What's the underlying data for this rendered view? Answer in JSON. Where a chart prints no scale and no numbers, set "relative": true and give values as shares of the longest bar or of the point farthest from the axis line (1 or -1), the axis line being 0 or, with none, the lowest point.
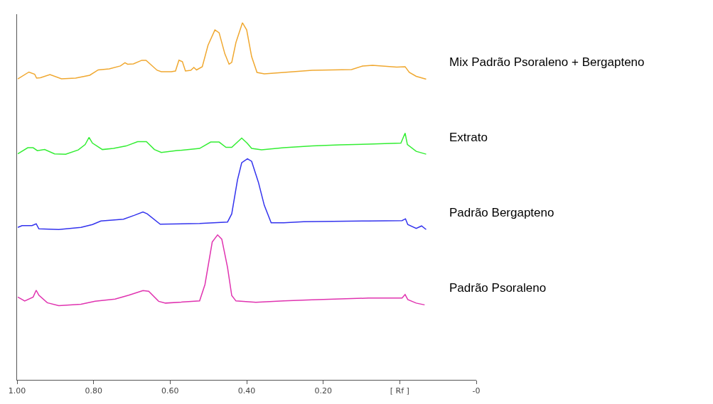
{
  "chart_data": {
    "type": "line",
    "relative": true,
    "legend": false,
    "marker": "none",
    "line_style": "solid",
    "xlim": [
      1.0,
      -0.2
    ],
    "xticks": [
      {
        "value": 1.0,
        "label": "1.00"
      },
      {
        "value": 0.8,
        "label": "0.80"
      },
      {
        "value": 0.6,
        "label": "0.60"
      },
      {
        "value": 0.4,
        "label": "0.40"
      },
      {
        "value": 0.2,
        "label": "0.20"
      },
      {
        "value": 0,
        "label": "[ Rf ]"
      },
      {
        "value": -0.2,
        "label": "-0"
      }
    ],
    "series": [
      {
        "name": "Mix Padrão Psoraleno + Bergapteno",
        "color": "#f0a830",
        "x": [
          0.998,
          0.969,
          0.954,
          0.949,
          0.939,
          0.914,
          0.884,
          0.847,
          0.81,
          0.788,
          0.759,
          0.73,
          0.718,
          0.711,
          0.696,
          0.674,
          0.663,
          0.634,
          0.623,
          0.597,
          0.586,
          0.577,
          0.568,
          0.56,
          0.546,
          0.538,
          0.531,
          0.516,
          0.501,
          0.483,
          0.472,
          0.457,
          0.446,
          0.439,
          0.428,
          0.411,
          0.4,
          0.387,
          0.373,
          0.354,
          0.303,
          0.229,
          0.126,
          0.097,
          0.071,
          0.008,
          -0.014,
          -0.025,
          -0.043,
          -0.069
        ],
        "values": [
          0.843,
          0.862,
          0.856,
          0.845,
          0.846,
          0.855,
          0.843,
          0.845,
          0.853,
          0.868,
          0.871,
          0.879,
          0.888,
          0.884,
          0.885,
          0.895,
          0.895,
          0.867,
          0.863,
          0.863,
          0.865,
          0.895,
          0.891,
          0.865,
          0.867,
          0.875,
          0.868,
          0.877,
          0.937,
          0.98,
          0.972,
          0.913,
          0.884,
          0.889,
          0.945,
          1.0,
          0.98,
          0.905,
          0.861,
          0.857,
          0.861,
          0.867,
          0.869,
          0.879,
          0.881,
          0.876,
          0.877,
          0.861,
          0.85,
          0.842
        ]
      },
      {
        "name": "Extrato",
        "color": "#33ee33",
        "x": [
          0.998,
          0.972,
          0.958,
          0.947,
          0.928,
          0.902,
          0.873,
          0.84,
          0.822,
          0.812,
          0.803,
          0.777,
          0.748,
          0.715,
          0.685,
          0.662,
          0.641,
          0.623,
          0.582,
          0.523,
          0.494,
          0.472,
          0.454,
          0.439,
          0.413,
          0.399,
          0.387,
          0.361,
          0.303,
          0.229,
          0.156,
          0.082,
          -0.003,
          -0.014,
          -0.02,
          -0.043,
          -0.069
        ],
        "values": [
          0.633,
          0.65,
          0.65,
          0.642,
          0.645,
          0.633,
          0.632,
          0.644,
          0.659,
          0.679,
          0.663,
          0.645,
          0.648,
          0.655,
          0.667,
          0.667,
          0.645,
          0.637,
          0.642,
          0.648,
          0.666,
          0.666,
          0.651,
          0.651,
          0.677,
          0.663,
          0.648,
          0.644,
          0.65,
          0.655,
          0.658,
          0.66,
          0.663,
          0.691,
          0.659,
          0.64,
          0.632
        ]
      },
      {
        "name": "Padrão Bergapteno",
        "color": "#3333ee",
        "x": [
          0.998,
          0.987,
          0.961,
          0.95,
          0.943,
          0.891,
          0.833,
          0.803,
          0.781,
          0.722,
          0.693,
          0.671,
          0.66,
          0.626,
          0.523,
          0.45,
          0.439,
          0.424,
          0.413,
          0.398,
          0.387,
          0.369,
          0.354,
          0.336,
          0.303,
          0.251,
          0.082,
          -0.006,
          -0.015,
          -0.021,
          -0.043,
          -0.057,
          -0.069
        ],
        "values": [
          0.427,
          0.432,
          0.432,
          0.437,
          0.423,
          0.421,
          0.427,
          0.435,
          0.445,
          0.45,
          0.461,
          0.47,
          0.465,
          0.436,
          0.438,
          0.442,
          0.465,
          0.56,
          0.608,
          0.619,
          0.612,
          0.552,
          0.489,
          0.44,
          0.44,
          0.443,
          0.445,
          0.446,
          0.451,
          0.435,
          0.424,
          0.431,
          0.421
        ]
      },
      {
        "name": "Padrão Psoraleno",
        "color": "#e033b0",
        "x": [
          0.998,
          0.98,
          0.958,
          0.95,
          0.943,
          0.921,
          0.891,
          0.833,
          0.796,
          0.744,
          0.708,
          0.671,
          0.656,
          0.63,
          0.612,
          0.523,
          0.509,
          0.49,
          0.476,
          0.465,
          0.45,
          0.439,
          0.428,
          0.376,
          0.303,
          0.229,
          0.082,
          -0.006,
          -0.014,
          -0.021,
          -0.043,
          -0.065
        ],
        "values": [
          0.232,
          0.221,
          0.232,
          0.251,
          0.237,
          0.216,
          0.208,
          0.212,
          0.22,
          0.226,
          0.237,
          0.25,
          0.248,
          0.22,
          0.215,
          0.221,
          0.267,
          0.386,
          0.406,
          0.394,
          0.315,
          0.236,
          0.221,
          0.217,
          0.221,
          0.224,
          0.229,
          0.229,
          0.239,
          0.225,
          0.215,
          0.21
        ]
      }
    ]
  }
}
